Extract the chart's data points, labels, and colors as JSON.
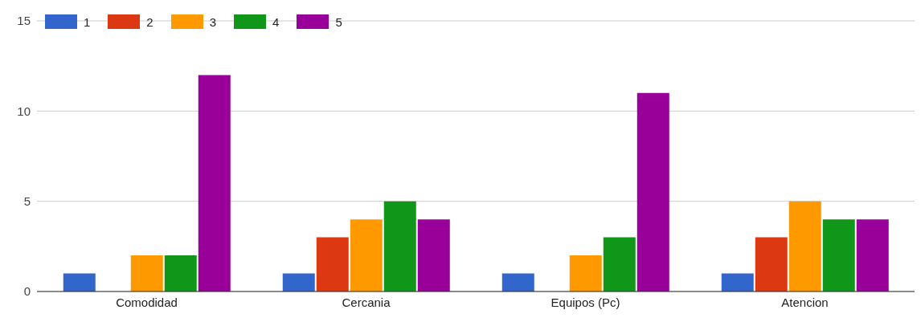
{
  "chart_data": {
    "type": "bar",
    "categories": [
      "Comodidad",
      "Cercania",
      "Equipos (Pc)",
      "Atencion"
    ],
    "series": [
      {
        "name": "1",
        "color": "#3366cc",
        "values": [
          1,
          1,
          1,
          1
        ]
      },
      {
        "name": "2",
        "color": "#dc3912",
        "values": [
          0,
          3,
          0,
          3
        ]
      },
      {
        "name": "3",
        "color": "#ff9900",
        "values": [
          2,
          4,
          2,
          5
        ]
      },
      {
        "name": "4",
        "color": "#109618",
        "values": [
          2,
          5,
          3,
          4
        ]
      },
      {
        "name": "5",
        "color": "#990099",
        "values": [
          12,
          4,
          11,
          4
        ]
      }
    ],
    "ylim": [
      0,
      15
    ],
    "yticks": [
      0,
      5,
      10,
      15
    ],
    "grid": "y",
    "legend": "top left"
  }
}
